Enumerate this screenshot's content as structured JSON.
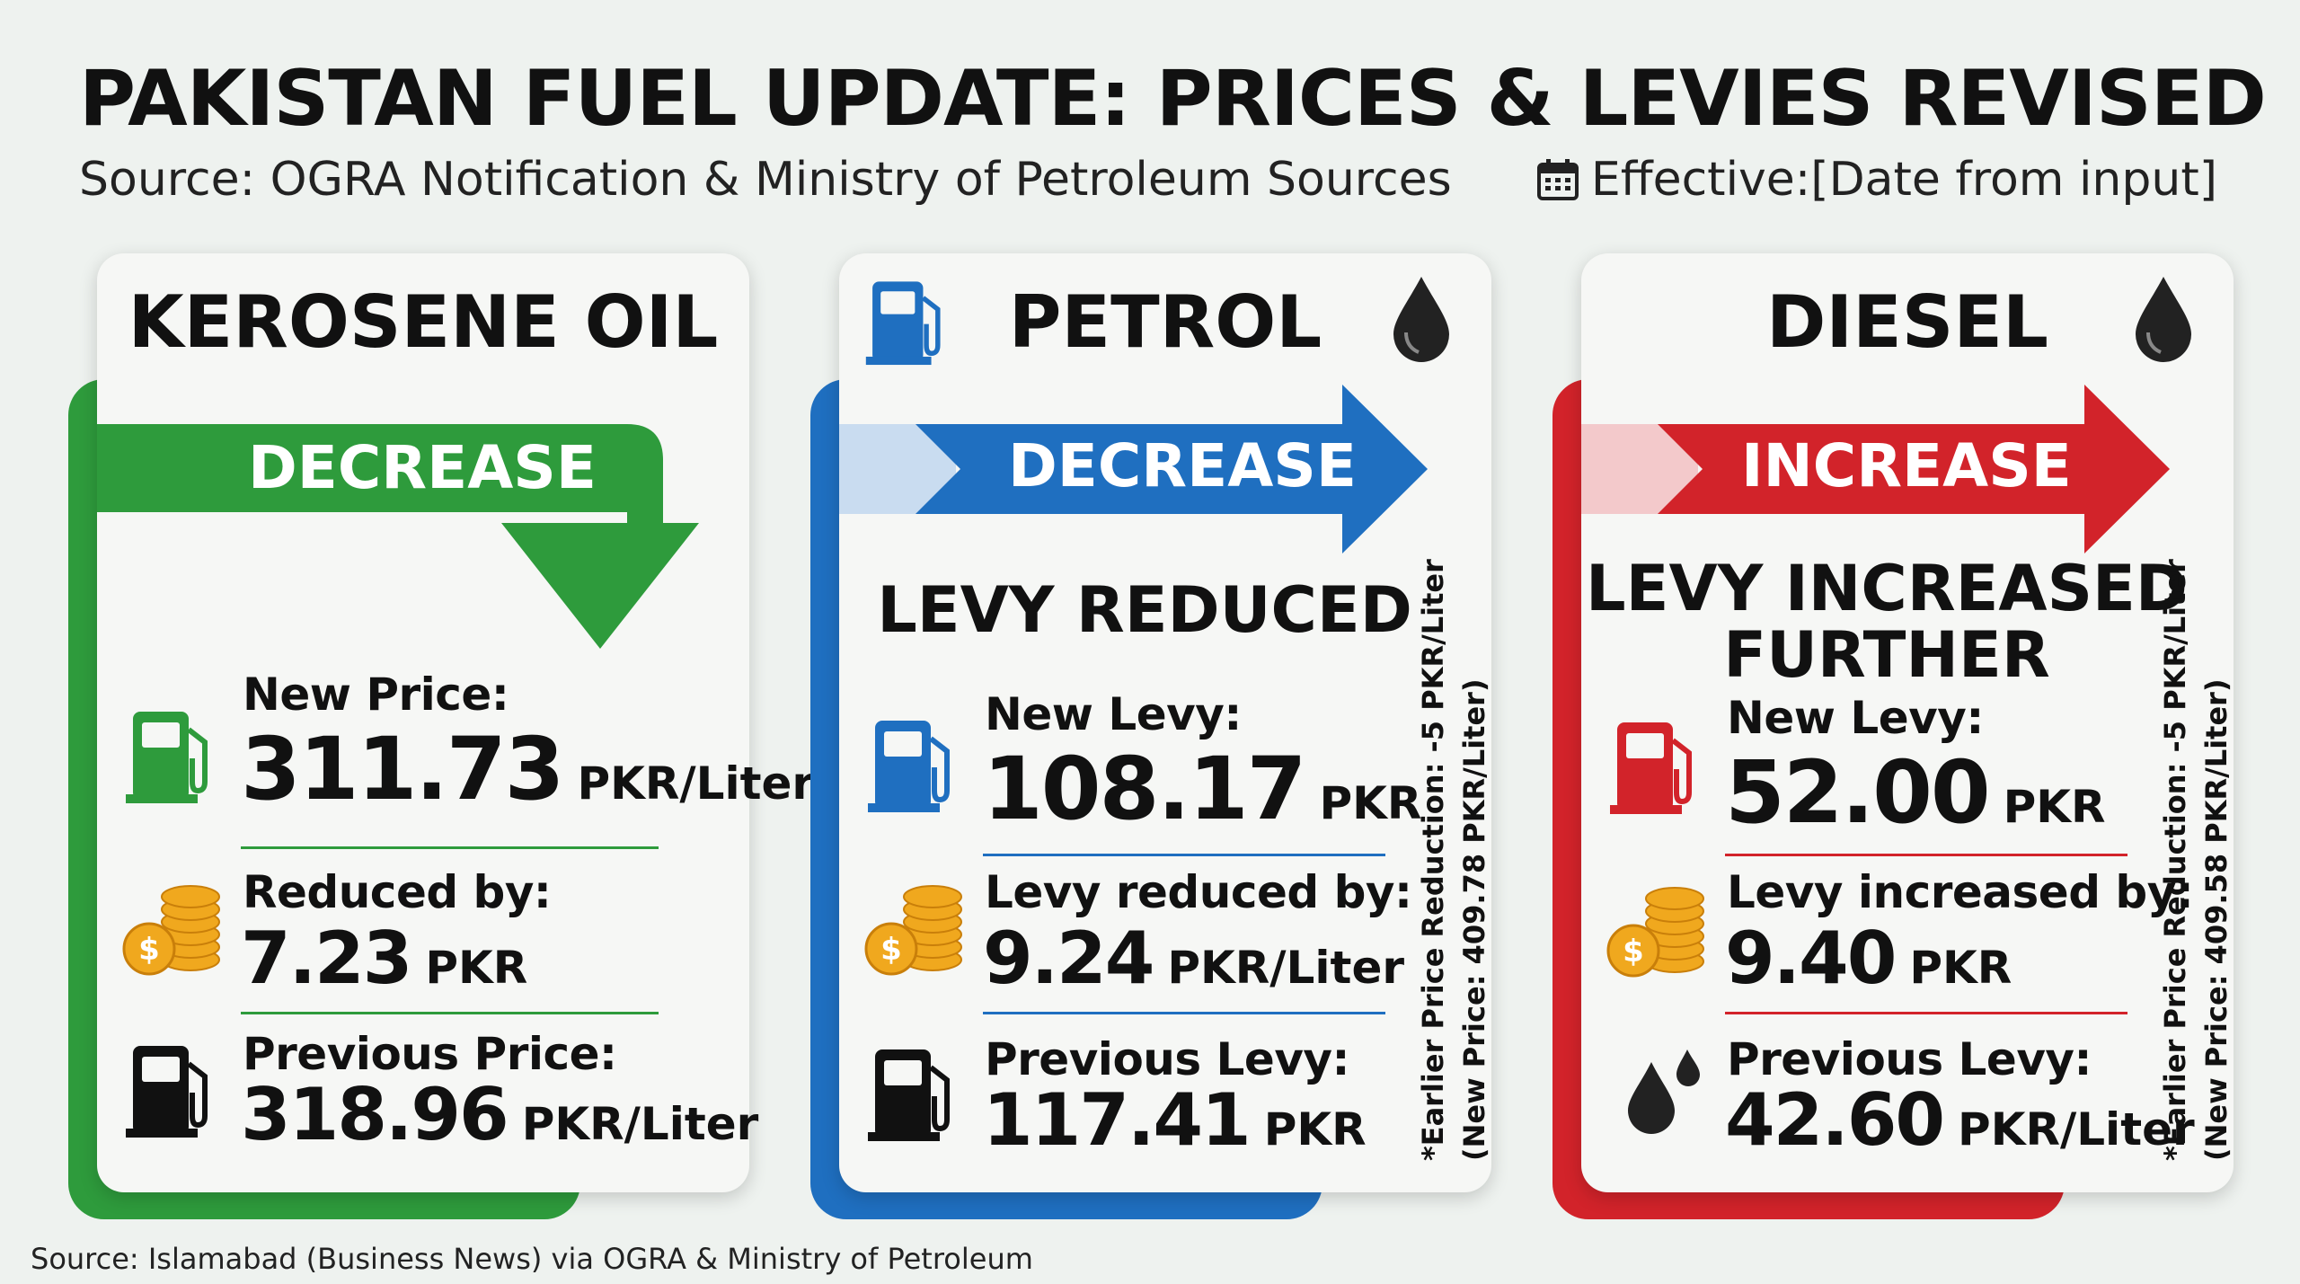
{
  "header": {
    "title": "PAKISTAN FUEL UPDATE: PRICES & LEVIES REVISED",
    "source": "Source: OGRA Notification & Ministry of Petroleum Sources",
    "effective": "Effective:[Date from input]",
    "calendar_icon": "calendar-icon"
  },
  "footer": {
    "source": "Source: Islamabad (Business News) via OGRA & Ministry of Petroleum"
  },
  "colors": {
    "kerosene": "#2e9b3c",
    "petrol": "#1f6fc0",
    "diesel": "#d2232a",
    "background": "#eef2ef"
  },
  "kerosene": {
    "title": "KEROSENE OIL",
    "direction": "DECREASE",
    "new_price_label": "New Price:",
    "new_price_value": "311.73",
    "new_price_unit": "PKR/Liter",
    "reduced_label": "Reduced by:",
    "reduced_value": "7.23",
    "reduced_unit": "PKR",
    "previous_label": "Previous Price:",
    "previous_value": "318.96",
    "previous_unit": "PKR/Liter"
  },
  "petrol": {
    "title": "PETROL",
    "direction": "DECREASE",
    "status": "LEVY REDUCED",
    "new_label": "New Levy:",
    "new_value": "108.17",
    "new_unit": "PKR",
    "change_label": "Levy reduced by:",
    "change_value": "9.24",
    "change_unit": "PKR/Liter",
    "previous_label": "Previous Levy:",
    "previous_value": "117.41",
    "previous_unit": "PKR",
    "note_line1": "*Earlier Price Reduction: -5 PKR/Liter",
    "note_line2": "(New Price: 409.78 PKR/Liter)"
  },
  "diesel": {
    "title": "DIESEL",
    "direction": "INCREASE",
    "status_line1": "LEVY INCREASED",
    "status_line2": "FURTHER",
    "new_label": "New Levy:",
    "new_value": "52.00",
    "new_unit": "PKR",
    "change_label": "Levy increased by:",
    "change_value": "9.40",
    "change_unit": "PKR",
    "previous_label": "Previous Levy:",
    "previous_value": "42.60",
    "previous_unit": "PKR/Liter",
    "note_line1": "*Earlier Price Reduction: -5 PKR/Liter",
    "note_line2": "(New Price: 409.58 PKR/Liter)"
  }
}
